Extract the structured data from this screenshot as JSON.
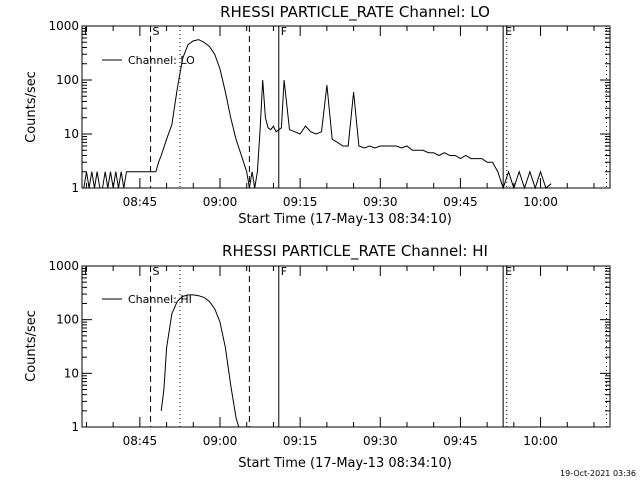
{
  "timestamp": "19-Oct-2021 03:36",
  "chart_data": [
    {
      "type": "line",
      "title": "RHESSI PARTICLE_RATE Channel: LO",
      "xlabel": "Start Time (17-May-13 08:34:10)",
      "ylabel": "Counts/sec",
      "yscale": "log",
      "xlim": [
        "08:34:10",
        "10:13:00"
      ],
      "ylim": [
        1,
        1000
      ],
      "x_ticks": [
        "08:45",
        "09:00",
        "09:15",
        "09:30",
        "09:45",
        "10:00"
      ],
      "y_ticks": [
        "1",
        "10",
        "100",
        "1000"
      ],
      "legend": "top-left",
      "series": [
        {
          "name": "Channel: LO",
          "x": [
            "08:34:30",
            "08:35:00",
            "08:35:30",
            "08:36:00",
            "08:36:30",
            "08:37:00",
            "08:37:30",
            "08:38:00",
            "08:38:30",
            "08:39:00",
            "08:39:30",
            "08:40:00",
            "08:40:30",
            "08:41:00",
            "08:41:30",
            "08:42:00",
            "08:42:30",
            "08:43:00",
            "08:44:00",
            "08:45:00",
            "08:46:00",
            "08:47:00",
            "08:48:00",
            "08:48:30",
            "08:49:00",
            "08:50:00",
            "08:51:00",
            "08:52:00",
            "08:53:00",
            "08:54:00",
            "08:55:00",
            "08:56:00",
            "08:57:00",
            "08:58:00",
            "08:59:00",
            "09:00:00",
            "09:01:00",
            "09:02:00",
            "09:03:00",
            "09:04:00",
            "09:05:00",
            "09:05:30",
            "09:06:00",
            "09:06:30",
            "09:07:00",
            "09:07:30",
            "09:08:00",
            "09:08:30",
            "09:09:00",
            "09:09:30",
            "09:10:00",
            "09:10:30",
            "09:11:00",
            "09:11:30",
            "09:12:00",
            "09:13:00",
            "09:14:00",
            "09:15:00",
            "09:16:00",
            "09:17:00",
            "09:18:00",
            "09:19:00",
            "09:20:00",
            "09:21:00",
            "09:22:00",
            "09:23:00",
            "09:24:00",
            "09:25:00",
            "09:26:00",
            "09:27:00",
            "09:28:00",
            "09:29:00",
            "09:30:00",
            "09:31:00",
            "09:32:00",
            "09:33:00",
            "09:34:00",
            "09:35:00",
            "09:36:00",
            "09:37:00",
            "09:38:00",
            "09:39:00",
            "09:40:00",
            "09:41:00",
            "09:42:00",
            "09:43:00",
            "09:44:00",
            "09:45:00",
            "09:46:00",
            "09:47:00",
            "09:48:00",
            "09:49:00",
            "09:50:00",
            "09:51:00",
            "09:52:00",
            "09:53:00",
            "09:54:00",
            "09:55:00",
            "09:56:00",
            "09:57:00",
            "09:58:00",
            "09:59:00",
            "10:00:00",
            "10:01:00",
            "10:02:00"
          ],
          "y": [
            1,
            2,
            1,
            2,
            1,
            2,
            1,
            1,
            2,
            1,
            2,
            1,
            2,
            1,
            2,
            1,
            2,
            2,
            2,
            2,
            2,
            2,
            2,
            3,
            4,
            8,
            15,
            70,
            250,
            450,
            530,
            560,
            500,
            420,
            300,
            160,
            60,
            20,
            8,
            4,
            2,
            1,
            2,
            1,
            2,
            12,
            100,
            20,
            13,
            12,
            14,
            11,
            12,
            13,
            100,
            12,
            11,
            10,
            14,
            11,
            10,
            11,
            80,
            8,
            7,
            6,
            6,
            60,
            6,
            5.5,
            6,
            5.5,
            6,
            6,
            6,
            6,
            5.5,
            6,
            5,
            5,
            5,
            4.5,
            4.5,
            4,
            4.5,
            4,
            4,
            3.5,
            4,
            3.5,
            3.5,
            3.5,
            3,
            3,
            2,
            1,
            2,
            1,
            2,
            1,
            2,
            1,
            2,
            1,
            1.2
          ]
        }
      ],
      "markers": [
        {
          "label": "S",
          "time": "08:47:00",
          "style": "dashed"
        },
        {
          "label": "",
          "time": "08:52:30",
          "style": "dotted"
        },
        {
          "label": "",
          "time": "09:05:30",
          "style": "dashed"
        },
        {
          "label": "F",
          "time": "09:11:00",
          "style": "solid"
        },
        {
          "label": "E",
          "time": "09:53:00",
          "style": "solid"
        },
        {
          "label": "",
          "time": "09:53:40",
          "style": "dotted"
        },
        {
          "label": "",
          "time": "10:12:20",
          "style": "dotted"
        }
      ],
      "left_marker": "I"
    },
    {
      "type": "line",
      "title": "RHESSI PARTICLE_RATE Channel: HI",
      "xlabel": "Start Time (17-May-13 08:34:10)",
      "ylabel": "Counts/sec",
      "yscale": "log",
      "xlim": [
        "08:34:10",
        "10:13:00"
      ],
      "ylim": [
        1,
        1000
      ],
      "x_ticks": [
        "08:45",
        "09:00",
        "09:15",
        "09:30",
        "09:45",
        "10:00"
      ],
      "y_ticks": [
        "1",
        "10",
        "100",
        "1000"
      ],
      "legend": "top-left",
      "series": [
        {
          "name": "Channel: HI",
          "x": [
            "08:49:00",
            "08:49:30",
            "08:50:00",
            "08:51:00",
            "08:52:00",
            "08:53:00",
            "08:54:00",
            "08:55:00",
            "08:56:00",
            "08:57:00",
            "08:58:00",
            "08:59:00",
            "09:00:00",
            "09:01:00",
            "09:02:00",
            "09:03:00",
            "09:03:30"
          ],
          "y": [
            2,
            5,
            30,
            130,
            220,
            270,
            290,
            290,
            280,
            260,
            220,
            160,
            90,
            30,
            6,
            1.5,
            1
          ]
        }
      ],
      "markers": [
        {
          "label": "S",
          "time": "08:47:00",
          "style": "dashed"
        },
        {
          "label": "",
          "time": "08:52:30",
          "style": "dotted"
        },
        {
          "label": "",
          "time": "09:05:30",
          "style": "dashed"
        },
        {
          "label": "F",
          "time": "09:11:00",
          "style": "solid"
        },
        {
          "label": "E",
          "time": "09:53:00",
          "style": "solid"
        },
        {
          "label": "",
          "time": "09:53:40",
          "style": "dotted"
        },
        {
          "label": "",
          "time": "10:12:20",
          "style": "dotted"
        }
      ],
      "left_marker": "I"
    }
  ]
}
